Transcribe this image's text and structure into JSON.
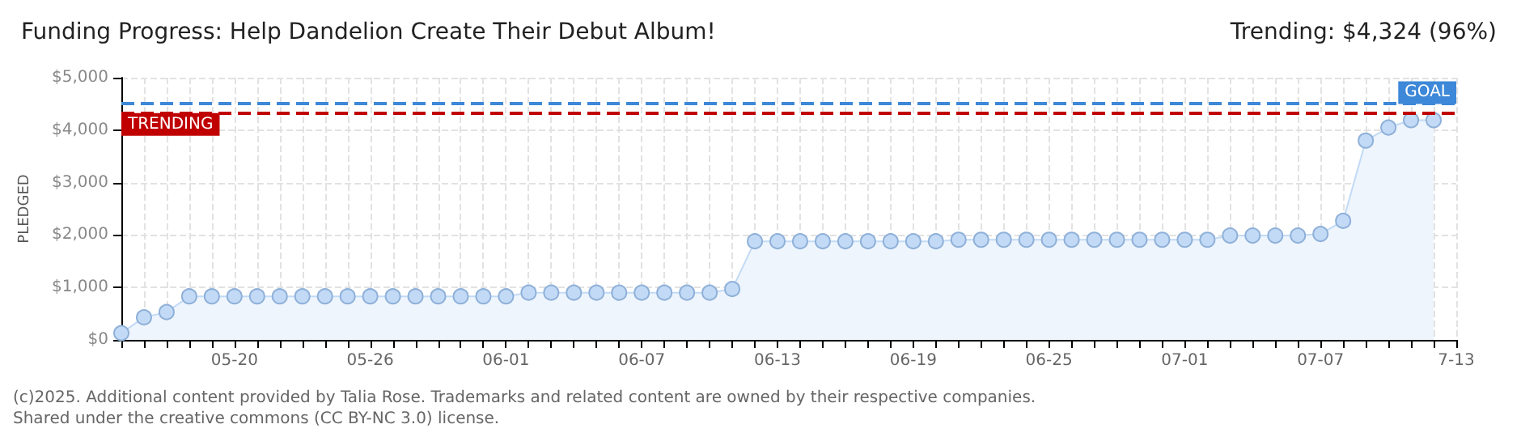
{
  "chart_data": {
    "type": "area",
    "title": "Funding Progress: Help Dandelion Create Their Debut Album!",
    "subtitle": "Trending: $4,324 (96%)",
    "ylabel": "PLEDGED",
    "annotations": [
      "(c)2025. Additional content provided by Talia Rose. Trademarks and related content are owned by their respective companies.",
      "Shared under the creative commons (CC BY-NC 3.0) license."
    ],
    "x": [
      "--05-15",
      "--05-16",
      "--05-17",
      "--05-18",
      "--05-19",
      "--05-20",
      "--05-21",
      "--05-22",
      "--05-23",
      "--05-24",
      "--05-25",
      "--05-26",
      "--05-27",
      "--05-28",
      "--05-29",
      "--05-30",
      "--05-31",
      "--06-01",
      "--06-02",
      "--06-03",
      "--06-04",
      "--06-05",
      "--06-06",
      "--06-07",
      "--06-08",
      "--06-09",
      "--06-10",
      "--06-11",
      "--06-12",
      "--06-13",
      "--06-14",
      "--06-15",
      "--06-16",
      "--06-17",
      "--06-18",
      "--06-19",
      "--06-20",
      "--06-21",
      "--06-22",
      "--06-23",
      "--06-24",
      "--06-25",
      "--06-26",
      "--06-27",
      "--06-28",
      "--06-29",
      "--06-30",
      "--07-01",
      "--07-02",
      "--07-03",
      "--07-04",
      "--07-05",
      "--07-06",
      "--07-07",
      "--07-08",
      "--07-09",
      "--07-10",
      "--07-11",
      "--07-12"
    ],
    "series": [
      {
        "color": "#c2daf6",
        "values": [
          130,
          430,
          530,
          830,
          830,
          830,
          830,
          830,
          830,
          830,
          830,
          830,
          830,
          830,
          830,
          830,
          830,
          830,
          900,
          900,
          900,
          900,
          900,
          900,
          900,
          900,
          900,
          970,
          1880,
          1880,
          1880,
          1880,
          1880,
          1880,
          1880,
          1880,
          1880,
          1910,
          1910,
          1910,
          1910,
          1910,
          1910,
          1910,
          1910,
          1910,
          1910,
          1910,
          1910,
          1990,
          1990,
          1990,
          1990,
          2020,
          2270,
          3800,
          4050,
          4190,
          4190
        ]
      }
    ],
    "xlim": [
      "--05-15",
      "--07-13"
    ],
    "xticks": [
      {
        "value": "--05-15",
        "label": null
      },
      {
        "value": "--05-16",
        "label": null
      },
      {
        "value": "--05-17",
        "label": null
      },
      {
        "value": "--05-18",
        "label": null
      },
      {
        "value": "--05-19",
        "label": null
      },
      {
        "value": "--05-20",
        "label": "05-20"
      },
      {
        "value": "--05-21",
        "label": null
      },
      {
        "value": "--05-22",
        "label": null
      },
      {
        "value": "--05-23",
        "label": null
      },
      {
        "value": "--05-24",
        "label": null
      },
      {
        "value": "--05-25",
        "label": null
      },
      {
        "value": "--05-26",
        "label": "05-26"
      },
      {
        "value": "--05-27",
        "label": null
      },
      {
        "value": "--05-28",
        "label": null
      },
      {
        "value": "--05-29",
        "label": null
      },
      {
        "value": "--05-30",
        "label": null
      },
      {
        "value": "--05-31",
        "label": null
      },
      {
        "value": "--06-01",
        "label": "06-01"
      },
      {
        "value": "--06-02",
        "label": null
      },
      {
        "value": "--06-03",
        "label": null
      },
      {
        "value": "--06-04",
        "label": null
      },
      {
        "value": "--06-05",
        "label": null
      },
      {
        "value": "--06-06",
        "label": null
      },
      {
        "value": "--06-07",
        "label": "06-07"
      },
      {
        "value": "--06-08",
        "label": null
      },
      {
        "value": "--06-09",
        "label": null
      },
      {
        "value": "--06-10",
        "label": null
      },
      {
        "value": "--06-11",
        "label": null
      },
      {
        "value": "--06-12",
        "label": null
      },
      {
        "value": "--06-13",
        "label": "06-13"
      },
      {
        "value": "--06-14",
        "label": null
      },
      {
        "value": "--06-15",
        "label": null
      },
      {
        "value": "--06-16",
        "label": null
      },
      {
        "value": "--06-17",
        "label": null
      },
      {
        "value": "--06-18",
        "label": null
      },
      {
        "value": "--06-19",
        "label": "06-19"
      },
      {
        "value": "--06-20",
        "label": null
      },
      {
        "value": "--06-21",
        "label": null
      },
      {
        "value": "--06-22",
        "label": null
      },
      {
        "value": "--06-23",
        "label": null
      },
      {
        "value": "--06-24",
        "label": null
      },
      {
        "value": "--06-25",
        "label": "06-25"
      },
      {
        "value": "--06-26",
        "label": null
      },
      {
        "value": "--06-27",
        "label": null
      },
      {
        "value": "--06-28",
        "label": null
      },
      {
        "value": "--06-29",
        "label": null
      },
      {
        "value": "--06-30",
        "label": null
      },
      {
        "value": "--07-01",
        "label": "07-01"
      },
      {
        "value": "--07-02",
        "label": null
      },
      {
        "value": "--07-03",
        "label": null
      },
      {
        "value": "--07-04",
        "label": null
      },
      {
        "value": "--07-05",
        "label": null
      },
      {
        "value": "--07-06",
        "label": null
      },
      {
        "value": "--07-07",
        "label": "07-07"
      },
      {
        "value": "--07-08",
        "label": null
      },
      {
        "value": "--07-09",
        "label": null
      },
      {
        "value": "--07-10",
        "label": null
      },
      {
        "value": "--07-11",
        "label": null
      },
      {
        "value": "--07-12",
        "label": null
      },
      {
        "value": "--07-13",
        "label": "7-13"
      }
    ],
    "ylim": [
      0,
      5000
    ],
    "yticks": [
      {
        "value": 0,
        "label": "$0"
      },
      {
        "value": 1000,
        "label": "$1,000"
      },
      {
        "value": 2000,
        "label": "$2,000"
      },
      {
        "value": 3000,
        "label": "$3,000"
      },
      {
        "value": 4000,
        "label": "$4,000"
      },
      {
        "value": 5000,
        "label": "$5,000"
      }
    ],
    "ref_lines": [
      {
        "axis": "y",
        "value": 4500,
        "label": "GOAL",
        "color": "#3d88d8",
        "line_style": "dashed"
      },
      {
        "axis": "y",
        "value": 4324,
        "label": "TRENDING",
        "color": "#c00000",
        "line_style": "dashed"
      }
    ],
    "grid": true,
    "marker": "circle"
  }
}
